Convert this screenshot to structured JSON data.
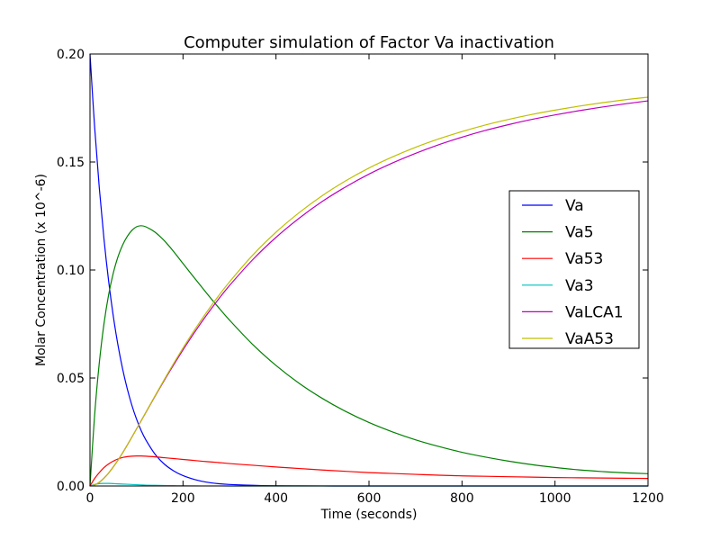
{
  "chart_data": {
    "type": "line",
    "title": "Computer simulation of Factor Va inactivation",
    "xlabel": "Time (seconds)",
    "ylabel": "Molar Concentration (x 10^-6)",
    "xlim": [
      0,
      1200
    ],
    "ylim": [
      0,
      0.2
    ],
    "xticks": [
      0,
      200,
      400,
      600,
      800,
      1000,
      1200
    ],
    "xtick_labels": [
      "0",
      "200",
      "400",
      "600",
      "800",
      "1000",
      "1200"
    ],
    "yticks": [
      0,
      0.05,
      0.1,
      0.15,
      0.2
    ],
    "ytick_labels": [
      "0.00",
      "0.05",
      "0.10",
      "0.15",
      "0.20"
    ],
    "grid": false,
    "legend_position": "right",
    "x": [
      0,
      10,
      20,
      30,
      40,
      50,
      60,
      70,
      80,
      90,
      100,
      110,
      120,
      140,
      160,
      180,
      200,
      225,
      250,
      275,
      300,
      350,
      400,
      450,
      500,
      550,
      600,
      650,
      700,
      750,
      800,
      850,
      900,
      950,
      1000,
      1050,
      1100,
      1150,
      1200
    ],
    "series": [
      {
        "name": "Va",
        "color": "#0000ff",
        "values": [
          0.2,
          0.166,
          0.138,
          0.1145,
          0.095,
          0.0788,
          0.0654,
          0.0543,
          0.0451,
          0.0374,
          0.031,
          0.0257,
          0.0214,
          0.0147,
          0.0101,
          0.007,
          0.0048,
          0.003,
          0.0018,
          0.0011,
          0.0007,
          0.0003,
          0.0001,
          5e-05,
          2e-05,
          0,
          0,
          0,
          0,
          0,
          0,
          0,
          0,
          0,
          0,
          0,
          0,
          0,
          0
        ]
      },
      {
        "name": "Va5",
        "color": "#008000",
        "values": [
          0,
          0.033,
          0.057,
          0.075,
          0.0885,
          0.0985,
          0.106,
          0.1115,
          0.1155,
          0.1183,
          0.12,
          0.1205,
          0.12,
          0.1175,
          0.1135,
          0.1085,
          0.103,
          0.0962,
          0.0895,
          0.083,
          0.0768,
          0.0655,
          0.0558,
          0.0475,
          0.0405,
          0.0345,
          0.0294,
          0.0251,
          0.0214,
          0.0183,
          0.0156,
          0.0134,
          0.0115,
          0.0099,
          0.0086,
          0.0075,
          0.0067,
          0.0061,
          0.0057
        ]
      },
      {
        "name": "Va53",
        "color": "#ff0000",
        "values": [
          0,
          0.0035,
          0.0062,
          0.0085,
          0.0102,
          0.0115,
          0.0125,
          0.0132,
          0.0136,
          0.0138,
          0.0139,
          0.0139,
          0.0138,
          0.0135,
          0.0131,
          0.0127,
          0.0123,
          0.0118,
          0.0113,
          0.0109,
          0.0104,
          0.0096,
          0.0088,
          0.0081,
          0.0074,
          0.0068,
          0.0062,
          0.0058,
          0.0054,
          0.005,
          0.0047,
          0.0045,
          0.0043,
          0.0041,
          0.0039,
          0.0038,
          0.0037,
          0.0036,
          0.0035
        ]
      },
      {
        "name": "Va3",
        "color": "#00bfbf",
        "values": [
          0,
          0.0007,
          0.0011,
          0.0012,
          0.0012,
          0.0011,
          0.001,
          0.0009,
          0.0008,
          0.0007,
          0.0006,
          0.0005,
          0.0004,
          0.0003,
          0.0002,
          0.00015,
          0.0001,
          5e-05,
          3e-05,
          2e-05,
          1e-05,
          0,
          0,
          0,
          0,
          0,
          0,
          0,
          0,
          0,
          0,
          0,
          0,
          0,
          0,
          0,
          0,
          0,
          0
        ]
      },
      {
        "name": "VaLCA1",
        "color": "#bf00bf",
        "values": [
          0,
          0.0005,
          0.0017,
          0.0036,
          0.006,
          0.0088,
          0.0119,
          0.0153,
          0.0189,
          0.0226,
          0.0264,
          0.0302,
          0.034,
          0.0416,
          0.049,
          0.0561,
          0.063,
          0.0712,
          0.0789,
          0.0861,
          0.0928,
          0.1048,
          0.1151,
          0.124,
          0.1318,
          0.1385,
          0.1444,
          0.1495,
          0.154,
          0.158,
          0.1615,
          0.1646,
          0.1673,
          0.1697,
          0.1718,
          0.1737,
          0.1754,
          0.1769,
          0.1783
        ]
      },
      {
        "name": "VaA53",
        "color": "#bfbf00",
        "values": [
          0,
          0.0005,
          0.0017,
          0.0036,
          0.006,
          0.0088,
          0.0119,
          0.0153,
          0.0189,
          0.0226,
          0.0264,
          0.0302,
          0.0341,
          0.0418,
          0.0494,
          0.0568,
          0.0639,
          0.0723,
          0.0802,
          0.0876,
          0.0945,
          0.1069,
          0.1175,
          0.1266,
          0.1345,
          0.1413,
          0.1472,
          0.1523,
          0.1568,
          0.1607,
          0.1641,
          0.1671,
          0.1697,
          0.172,
          0.174,
          0.1758,
          0.1774,
          0.1788,
          0.18
        ]
      }
    ]
  }
}
